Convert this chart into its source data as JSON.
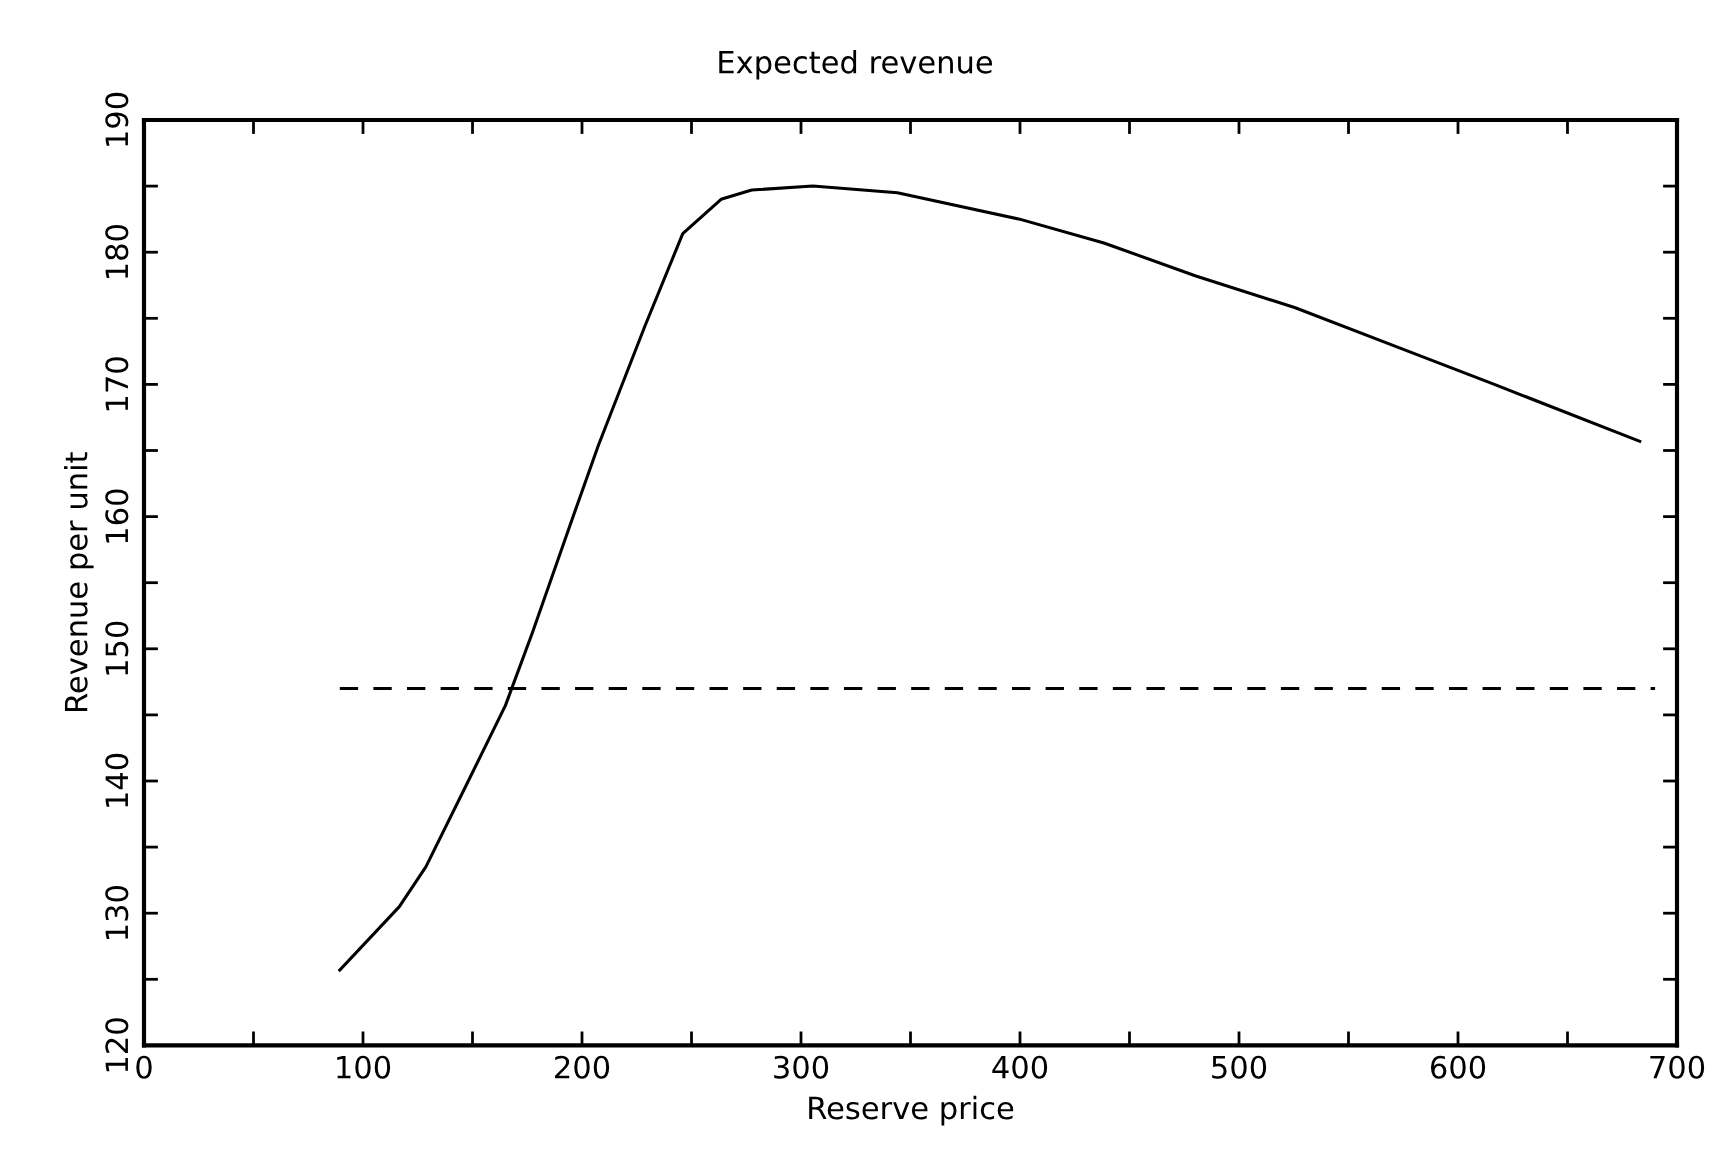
{
  "chart_data": {
    "type": "line",
    "title": "Expected revenue",
    "xlabel": "Reserve price",
    "ylabel": "Revenue per unit",
    "x": [
      89.4,
      116.6,
      128.7,
      146.9,
      165,
      177.3,
      195.5,
      207.5,
      228.7,
      246,
      263.5,
      277.5,
      305.4,
      344,
      399.8,
      438.3,
      480.3,
      525.7,
      571.2,
      616.6,
      683
    ],
    "series": [
      {
        "color": "#000000",
        "values": [
          125.7,
          130.5,
          133.5,
          139.6,
          145.7,
          151.2,
          159.8,
          165.4,
          174.4,
          181.4,
          184.0,
          184.7,
          185.0,
          184.5,
          182.5,
          180.7,
          178.2,
          175.8,
          172.9,
          170.0,
          165.7
        ]
      },
      {
        "type": "line",
        "color": "#000000",
        "line_style": "dashed",
        "x": [
          89.4,
          690
        ],
        "values": [
          147.0,
          147.0
        ]
      }
    ],
    "xlim": [
      0,
      700
    ],
    "ylim": [
      120,
      190
    ],
    "xticks": [
      0,
      {
        "value": 50,
        "label": null
      },
      100,
      {
        "value": 150,
        "label": null
      },
      200,
      {
        "value": 250,
        "label": null
      },
      300,
      {
        "value": 350,
        "label": null
      },
      400,
      {
        "value": 450,
        "label": null
      },
      500,
      {
        "value": 550,
        "label": null
      },
      600,
      {
        "value": 650,
        "label": null
      },
      700
    ],
    "yticks": [
      120,
      {
        "value": 125,
        "label": null
      },
      130,
      {
        "value": 135,
        "label": null
      },
      140,
      {
        "value": 145,
        "label": null
      },
      150,
      {
        "value": 155,
        "label": null
      },
      160,
      {
        "value": 165,
        "label": null
      },
      170,
      {
        "value": 175,
        "label": null
      },
      180,
      {
        "value": 185,
        "label": null
      },
      190
    ],
    "grid": false,
    "legend": false,
    "marker": "none",
    "line_style": "solid"
  }
}
